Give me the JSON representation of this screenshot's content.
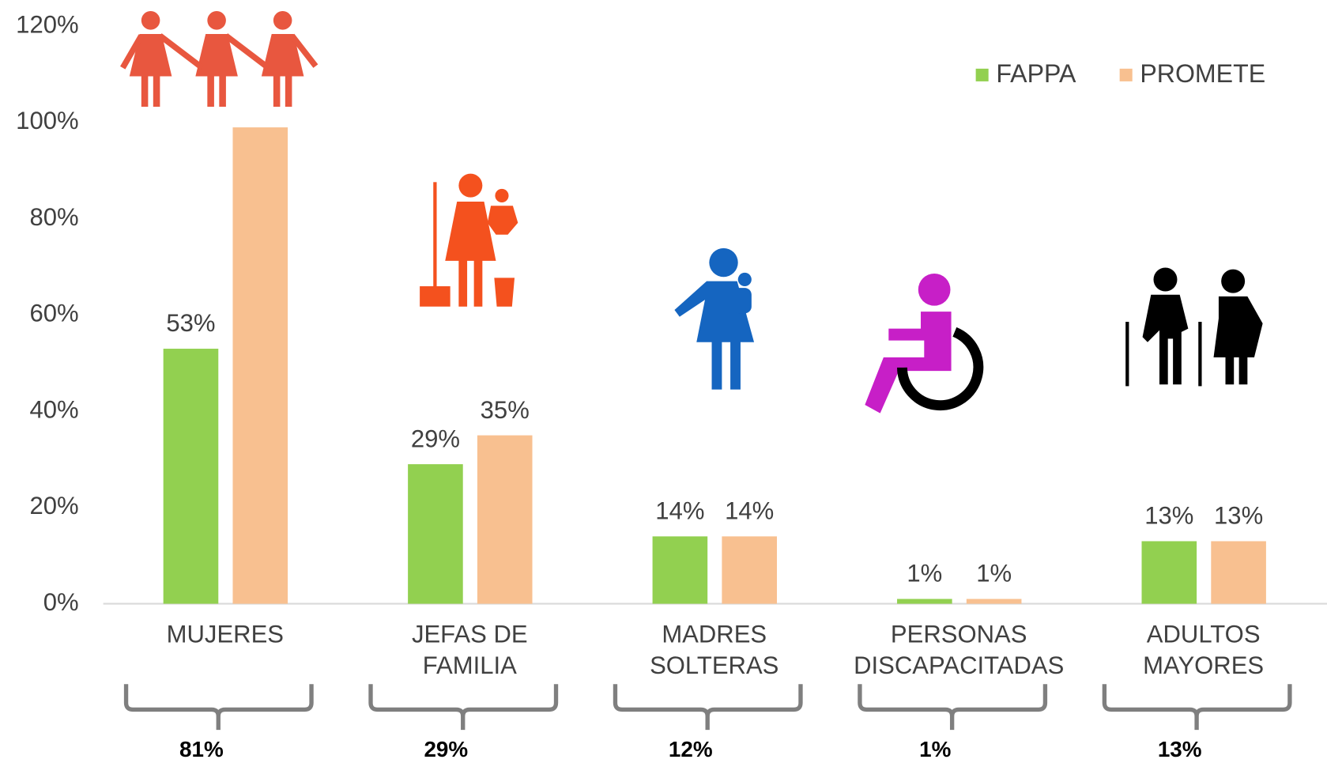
{
  "chart_data": {
    "type": "bar",
    "categories": [
      "MUJERES",
      "JEFAS DE FAMILIA",
      "MADRES SOLTERAS",
      "PERSONAS DISCAPACITADAS",
      "ADULTOS MAYORES"
    ],
    "series": [
      {
        "name": "FAPPA",
        "color": "#92d050",
        "values": [
          53,
          29,
          14,
          1,
          13
        ],
        "value_labels": [
          "53%",
          "29%",
          "14%",
          "1%",
          "13%"
        ]
      },
      {
        "name": "PROMETE",
        "color": "#f8c090",
        "values": [
          99,
          35,
          14,
          1,
          13
        ],
        "value_labels": [
          null,
          "35%",
          "14%",
          "1%",
          "13%"
        ]
      }
    ],
    "ylim": [
      0,
      120
    ],
    "yticks": [
      {
        "value": 0,
        "label": "0%"
      },
      {
        "value": 20,
        "label": "20%"
      },
      {
        "value": 40,
        "label": "40%"
      },
      {
        "value": 60,
        "label": "60%"
      },
      {
        "value": 80,
        "label": "80%"
      },
      {
        "value": 100,
        "label": "100%"
      },
      {
        "value": 120,
        "label": "120%"
      }
    ],
    "legend": "top-right",
    "group_totals": [
      81,
      29,
      12,
      1,
      13
    ],
    "group_total_labels": [
      "81%",
      "29%",
      "12%",
      "1%",
      "13%"
    ]
  }
}
